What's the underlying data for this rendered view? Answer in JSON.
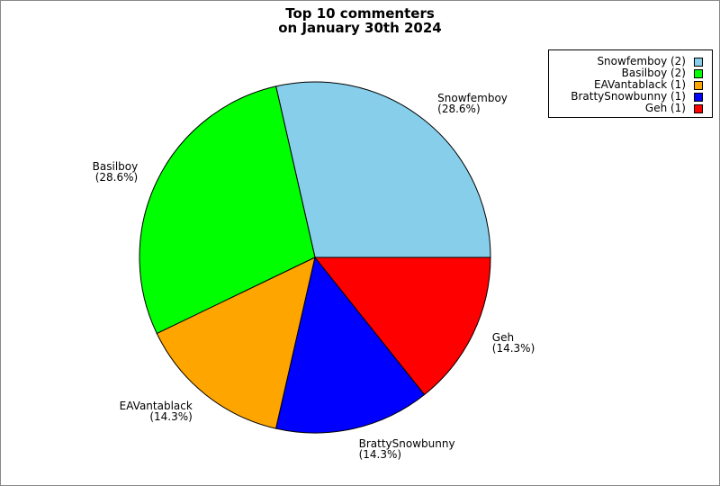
{
  "chart_data": {
    "type": "pie",
    "title": [
      "Top 10 commenters",
      "on January 30th 2024"
    ],
    "slices": [
      {
        "label": "Snowfemboy",
        "count": 2,
        "percent": "28.6%",
        "color": "#87ceeb"
      },
      {
        "label": "Basilboy",
        "count": 2,
        "percent": "28.6%",
        "color": "#00ff00"
      },
      {
        "label": "EAVantablack",
        "count": 1,
        "percent": "14.3%",
        "color": "#ffa500"
      },
      {
        "label": "BrattySnowbunny",
        "count": 1,
        "percent": "14.3%",
        "color": "#0000ff"
      },
      {
        "label": "Geh",
        "count": 1,
        "percent": "14.3%",
        "color": "#ff0000"
      }
    ],
    "legend": {
      "placement": "top-right",
      "entries": [
        "Snowfemboy (2)",
        "Basilboy (2)",
        "EAVantablack (1)",
        "BrattySnowbunny (1)",
        "Geh (1)"
      ]
    }
  }
}
